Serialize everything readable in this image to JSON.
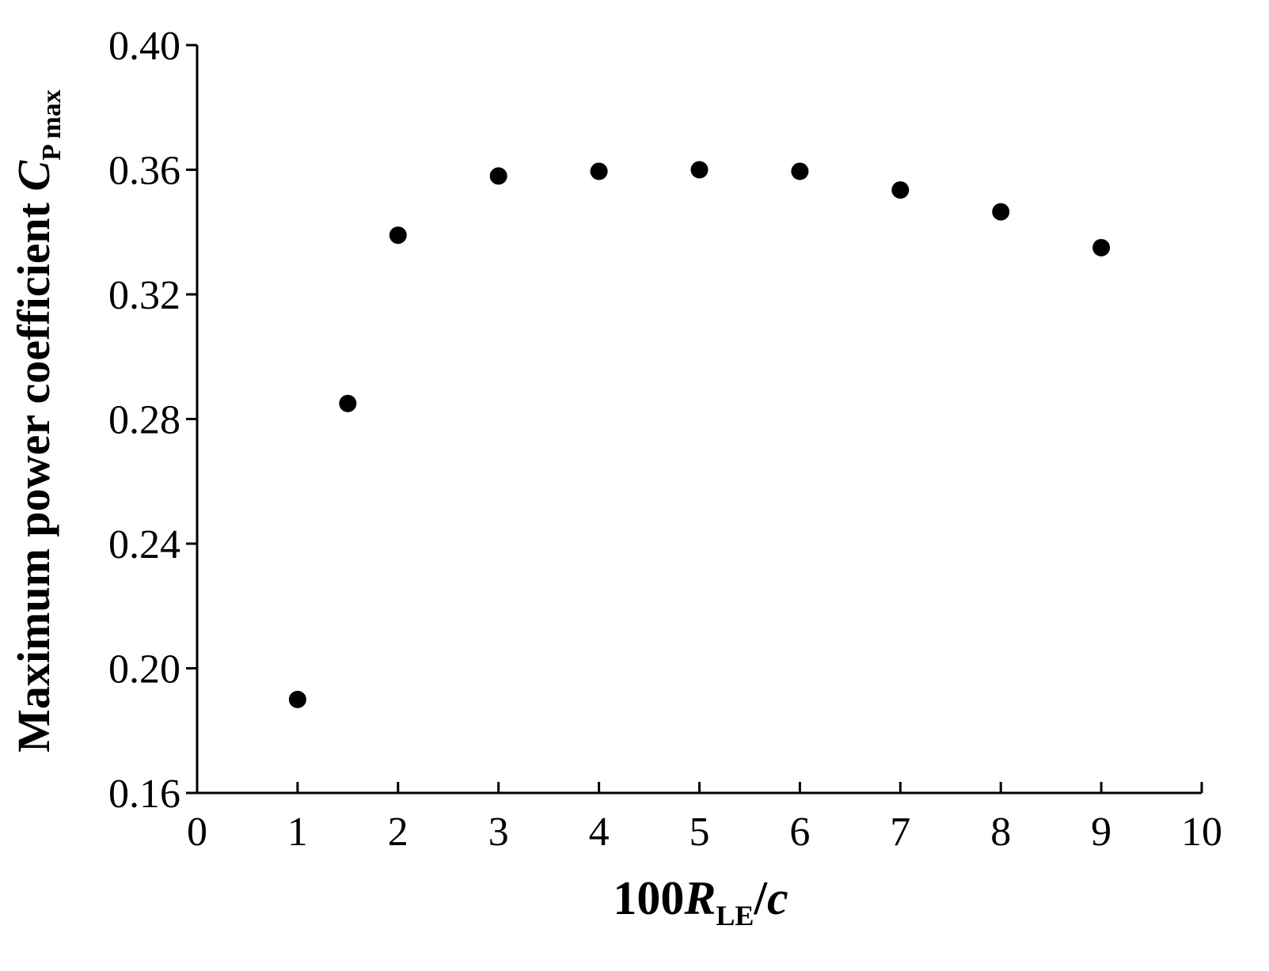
{
  "chart_data": {
    "type": "scatter",
    "xlabel": {
      "prefix": "100",
      "var": "R",
      "sub": "LE",
      "suffix": "/",
      "suffix_var": "c"
    },
    "ylabel": {
      "text": "Maximum power coefficient ",
      "var": "C",
      "sub": "P max"
    },
    "xlim": [
      0,
      10
    ],
    "ylim": [
      0.16,
      0.4
    ],
    "xticks": [
      0,
      1,
      2,
      3,
      4,
      5,
      6,
      7,
      8,
      9,
      10
    ],
    "xtick_labels": [
      "0",
      "1",
      "2",
      "3",
      "4",
      "5",
      "6",
      "7",
      "8",
      "9",
      "10"
    ],
    "yticks": [
      0.16,
      0.2,
      0.24,
      0.28,
      0.32,
      0.36,
      0.4
    ],
    "ytick_labels": [
      "0.16",
      "0.20",
      "0.24",
      "0.28",
      "0.32",
      "0.36",
      "0.40"
    ],
    "grid": false,
    "marker_color": "#000000",
    "series": [
      {
        "points": [
          {
            "x": 1.0,
            "y": 0.19
          },
          {
            "x": 1.5,
            "y": 0.285
          },
          {
            "x": 2.0,
            "y": 0.339
          },
          {
            "x": 3.0,
            "y": 0.358
          },
          {
            "x": 4.0,
            "y": 0.3595
          },
          {
            "x": 5.0,
            "y": 0.36
          },
          {
            "x": 6.0,
            "y": 0.3595
          },
          {
            "x": 7.0,
            "y": 0.3535
          },
          {
            "x": 8.0,
            "y": 0.3465
          },
          {
            "x": 9.0,
            "y": 0.335
          }
        ]
      }
    ]
  }
}
